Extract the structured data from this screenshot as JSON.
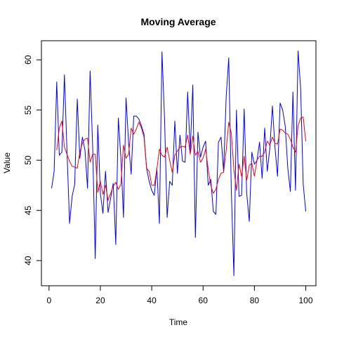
{
  "chart_data": {
    "type": "line",
    "title": "Moving Average",
    "xlabel": "Time",
    "ylabel": "Value",
    "xlim": [
      1,
      100
    ],
    "ylim": [
      38.4,
      61
    ],
    "xticks": [
      0,
      20,
      40,
      60,
      80,
      100
    ],
    "yticks": [
      40,
      45,
      50,
      55,
      60
    ],
    "grid": false,
    "legend": "none",
    "x": [
      1,
      2,
      3,
      4,
      5,
      6,
      7,
      8,
      9,
      10,
      11,
      12,
      13,
      14,
      15,
      16,
      17,
      18,
      19,
      20,
      21,
      22,
      23,
      24,
      25,
      26,
      27,
      28,
      29,
      30,
      31,
      32,
      33,
      34,
      35,
      36,
      37,
      38,
      39,
      40,
      41,
      42,
      43,
      44,
      45,
      46,
      47,
      48,
      49,
      50,
      51,
      52,
      53,
      54,
      55,
      56,
      57,
      58,
      59,
      60,
      61,
      62,
      63,
      64,
      65,
      66,
      67,
      68,
      69,
      70,
      71,
      72,
      73,
      74,
      75,
      76,
      77,
      78,
      79,
      80,
      81,
      82,
      83,
      84,
      85,
      86,
      87,
      88,
      89,
      90,
      91,
      92,
      93,
      94,
      95,
      96,
      97,
      98,
      99,
      100
    ],
    "series": [
      {
        "color": "#0000ff",
        "values": [
          47.2,
          48.9,
          57.8,
          50.5,
          50.8,
          58.5,
          50.9,
          43.7,
          46.4,
          47.6,
          56.1,
          50.2,
          52.3,
          51.0,
          47.2,
          58.9,
          51.3,
          40.2,
          53.5,
          46.7,
          44.7,
          48.9,
          44.8,
          46.2,
          47.7,
          41.6,
          54.2,
          50.2,
          44.3,
          56.2,
          51.7,
          48.6,
          54.4,
          54.4,
          54.1,
          53.4,
          52.6,
          49.2,
          47.9,
          47.0,
          46.5,
          49.2,
          43.7,
          60.8,
          54.1,
          44.3,
          47.9,
          47.5,
          53.9,
          48.7,
          52.5,
          49.9,
          49.8,
          56.8,
          50.9,
          57.5,
          42.3,
          52.8,
          50.3,
          51.3,
          51.9,
          47.5,
          48.1,
          44.9,
          44.6,
          51.8,
          52.3,
          48.9,
          56.3,
          60.2,
          47.0,
          38.5,
          55.0,
          46.4,
          46.5,
          55.1,
          46.7,
          43.9,
          50.8,
          49.6,
          50.0,
          51.8,
          48.2,
          53.2,
          48.9,
          51.2,
          55.4,
          51.3,
          48.4,
          55.7,
          55.0,
          53.4,
          49.2,
          46.9,
          56.8,
          47.0,
          60.9,
          57.2,
          47.6,
          44.9
        ]
      },
      {
        "color": "#ff0000",
        "values": [
          null,
          null,
          51.0,
          53.2,
          53.9,
          51.3,
          50.6,
          49.9,
          49.4,
          49.3,
          49.2,
          50.8,
          51.7,
          52.1,
          52.2,
          49.8,
          50.6,
          50.6,
          46.8,
          47.9,
          46.6,
          47.5,
          46.0,
          46.7,
          47.4,
          47.8,
          47.1,
          47.6,
          51.5,
          50.2,
          50.6,
          53.2,
          52.6,
          53.1,
          53.8,
          53.2,
          52.3,
          49.2,
          48.9,
          47.5,
          47.5,
          49.1,
          51.1,
          50.5,
          50.3,
          51.3,
          50.0,
          48.8,
          50.5,
          50.9,
          51.3,
          51.4,
          51.3,
          52.5,
          50.6,
          52.4,
          50.5,
          50.9,
          49.8,
          50.2,
          51.1,
          49.1,
          47.5,
          46.7,
          47.1,
          48.1,
          48.7,
          48.8,
          51.0,
          53.8,
          52.7,
          49.1,
          47.0,
          49.6,
          48.4,
          50.4,
          48.0,
          49.5,
          49.7,
          48.4,
          50.0,
          50.4,
          50.4,
          50.8,
          51.9,
          51.5,
          52.3,
          51.7,
          51.6,
          53.1,
          53.0,
          52.7,
          52.6,
          52.1,
          51.3,
          50.8,
          53.4,
          54.2,
          54.3,
          51.9
        ]
      }
    ]
  }
}
